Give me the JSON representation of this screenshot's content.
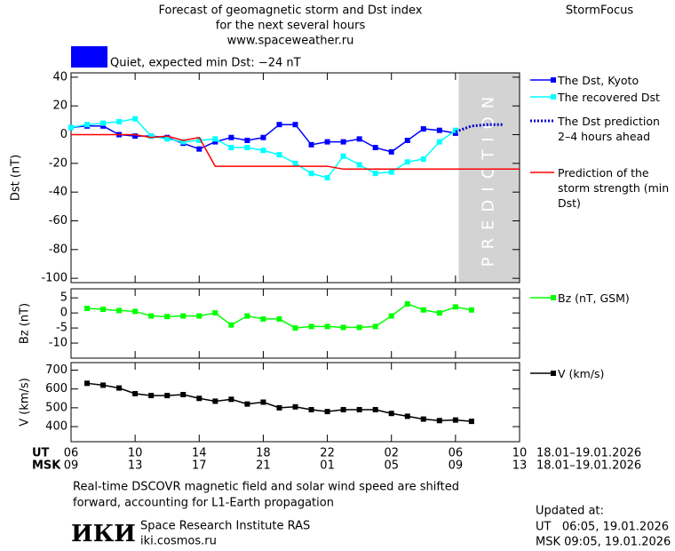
{
  "page": {
    "title_lines": [
      "Forecast of geomagnetic storm and Dst index",
      "for the next several hours",
      "www.spaceweather.ru"
    ],
    "brand": "StormFocus",
    "status_color": "#0000ff",
    "status_text": "Quiet, expected min Dst: −24 nT",
    "note_lines": [
      "Real-time DSCOVR magnetic field and solar wind speed are shifted",
      "forward, accounting for L1-Earth propagation"
    ],
    "logo": "ИКИ",
    "institute": "Space Research Institute RAS",
    "site": "iki.cosmos.ru",
    "updated_lines": [
      "Updated at:",
      "UT   06:05, 19.01.2026",
      "MSK 09:05, 19.01.2026"
    ]
  },
  "chart_data": [
    {
      "type": "line",
      "ylabel": "Dst (nT)",
      "xlim": [
        0,
        28
      ],
      "ylim": [
        -103,
        43
      ],
      "yticks": [
        40,
        20,
        0,
        -20,
        -40,
        -60,
        -80,
        -100
      ],
      "shaded_xrange": [
        24.2,
        28
      ],
      "shaded_color": "#d3d3d3",
      "shaded_text": "PREDICTION",
      "series": [
        {
          "name": "The Dst, Kyoto",
          "color": "#0000ff",
          "style": "solid-square",
          "x": [
            0,
            1,
            2,
            3,
            4,
            5,
            6,
            7,
            8,
            9,
            10,
            11,
            12,
            13,
            14,
            15,
            16,
            17,
            18,
            19,
            20,
            21,
            22,
            23,
            24
          ],
          "values": [
            5,
            6,
            6,
            0,
            -1,
            -1,
            -2,
            -6,
            -10,
            -5,
            -2,
            -4,
            -2,
            7,
            7,
            -7,
            -5,
            -5,
            -3,
            -9,
            -12,
            -4,
            4,
            3,
            1
          ]
        },
        {
          "name": "The recovered Dst",
          "color": "#00ffff",
          "style": "solid-square",
          "x": [
            0,
            1,
            2,
            3,
            4,
            5,
            6,
            7,
            8,
            9,
            10,
            11,
            12,
            13,
            14,
            15,
            16,
            17,
            18,
            19,
            20,
            21,
            22,
            23,
            24
          ],
          "values": [
            5,
            7,
            8,
            9,
            11,
            -1,
            -3,
            -5,
            -4,
            -3,
            -9,
            -9,
            -11,
            -14,
            -20,
            -27,
            -30,
            -15,
            -21,
            -27,
            -26,
            -19,
            -17,
            -5,
            3
          ]
        },
        {
          "name": "The Dst prediction 2–4 hours ahead",
          "color": "#0000cc",
          "style": "dotted",
          "x": [
            24,
            25,
            26,
            27
          ],
          "values": [
            2,
            6,
            7,
            7
          ]
        },
        {
          "name": "Prediction of the storm strength (min Dst)",
          "color": "#ff0000",
          "style": "solid",
          "x": [
            0,
            4,
            5,
            6,
            7,
            8,
            9,
            16,
            17,
            28
          ],
          "values": [
            0,
            0,
            -2,
            -1,
            -4,
            -2,
            -22,
            -22,
            -24,
            -24
          ]
        }
      ]
    },
    {
      "type": "line",
      "ylabel": "Bz (nT)",
      "xlim": [
        0,
        28
      ],
      "ylim": [
        -15,
        8
      ],
      "yticks": [
        5,
        0,
        -5,
        -10
      ],
      "series": [
        {
          "name": "Bz (nT, GSM)",
          "color": "#00ff00",
          "style": "solid-square",
          "x": [
            1,
            2,
            3,
            4,
            5,
            6,
            7,
            8,
            9,
            10,
            11,
            12,
            13,
            14,
            15,
            16,
            17,
            18,
            19,
            20,
            21,
            22,
            23,
            24,
            25
          ],
          "values": [
            1.5,
            1.2,
            0.8,
            0.5,
            -1,
            -1.2,
            -1,
            -1,
            0,
            -4,
            -1,
            -2,
            -2,
            -5,
            -4.5,
            -4.5,
            -4.8,
            -4.8,
            -4.5,
            -1,
            3,
            1,
            0,
            2,
            1
          ]
        }
      ]
    },
    {
      "type": "line",
      "ylabel": "V (km/s)",
      "xlim": [
        0,
        28
      ],
      "ylim": [
        320,
        740
      ],
      "yticks": [
        700,
        600,
        500,
        400
      ],
      "xlabel_ut": "UT",
      "xlabel_msk": "MSK",
      "xticks": [
        {
          "value": 0,
          "label": "06"
        },
        {
          "value": 4,
          "label": "10"
        },
        {
          "value": 8,
          "label": "14"
        },
        {
          "value": 12,
          "label": "18"
        },
        {
          "value": 16,
          "label": "22"
        },
        {
          "value": 20,
          "label": "02"
        },
        {
          "value": 24,
          "label": "06"
        },
        {
          "value": 28,
          "label": "10"
        }
      ],
      "xticks_msk": [
        {
          "value": 0,
          "label": "09"
        },
        {
          "value": 4,
          "label": "13"
        },
        {
          "value": 8,
          "label": "17"
        },
        {
          "value": 12,
          "label": "21"
        },
        {
          "value": 16,
          "label": "01"
        },
        {
          "value": 20,
          "label": "05"
        },
        {
          "value": 24,
          "label": "09"
        },
        {
          "value": 28,
          "label": "13"
        }
      ],
      "date_range_ut": "18.01–19.01.2026",
      "date_range_msk": "18.01–19.01.2026",
      "series": [
        {
          "name": "V (km/s)",
          "color": "#000000",
          "style": "solid-square",
          "x": [
            1,
            2,
            3,
            4,
            5,
            6,
            7,
            8,
            9,
            10,
            11,
            12,
            13,
            14,
            15,
            16,
            17,
            18,
            19,
            20,
            21,
            22,
            23,
            24,
            25
          ],
          "values": [
            630,
            620,
            605,
            575,
            565,
            565,
            570,
            550,
            535,
            545,
            520,
            530,
            500,
            505,
            490,
            480,
            490,
            490,
            490,
            470,
            455,
            440,
            432,
            435,
            428
          ]
        }
      ]
    }
  ]
}
